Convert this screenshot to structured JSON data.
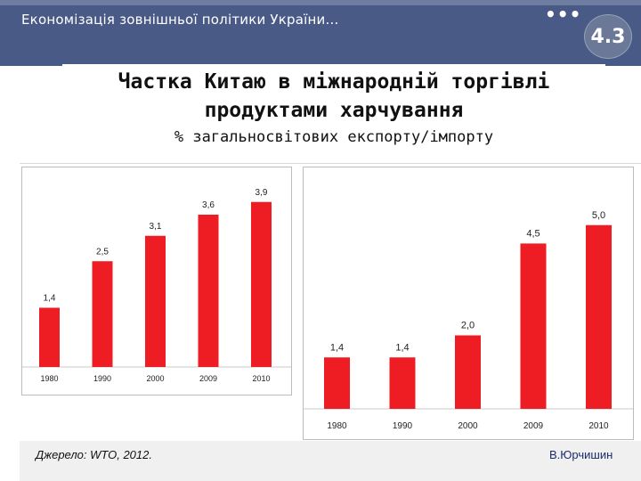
{
  "header": {
    "title": "Економізація зовнішньої політики України…",
    "dots": "•••",
    "slide_number": "4.3"
  },
  "slide": {
    "title_line1": "Частка Китаю в міжнародній торгівлі",
    "title_line2": "продуктами харчування",
    "subtitle": "% загальносвітових експорту/імпорту"
  },
  "footer": {
    "source": "Джерело: WTO, 2012.",
    "author": "В.Юрчишин"
  },
  "colors": {
    "bar": "#ee1c23",
    "header": "#4a5a86"
  },
  "chart_data": [
    {
      "type": "bar",
      "categories": [
        "1980",
        "1990",
        "2000",
        "2009",
        "2010"
      ],
      "values": [
        1.4,
        2.5,
        3.1,
        3.6,
        3.9
      ],
      "labels": [
        "1,4",
        "2,5",
        "3,1",
        "3,6",
        "3,9"
      ],
      "ylim": [
        0,
        4.4
      ],
      "grid": false
    },
    {
      "type": "bar",
      "categories": [
        "1980",
        "1990",
        "2000",
        "2009",
        "2010"
      ],
      "values": [
        1.4,
        1.4,
        2.0,
        4.5,
        5.0
      ],
      "labels": [
        "1,4",
        "1,4",
        "2,0",
        "4,5",
        "5,0"
      ],
      "ylim": [
        0,
        5.6
      ],
      "grid": false
    }
  ]
}
